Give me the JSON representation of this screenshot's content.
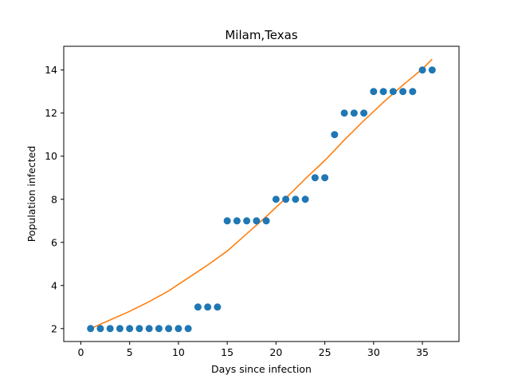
{
  "chart_data": {
    "type": "scatter",
    "title": "Milam,Texas",
    "xlabel": "Days since infection",
    "ylabel": "Population infected",
    "xlim": [
      -1.75,
      38.75
    ],
    "ylim": [
      1.4,
      15.1
    ],
    "xticks": [
      0,
      5,
      10,
      15,
      20,
      25,
      30,
      35
    ],
    "yticks": [
      2,
      4,
      6,
      8,
      10,
      12,
      14
    ],
    "grid": false,
    "series": [
      {
        "kind": "scatter",
        "color": "#1f77b4",
        "x": [
          1,
          2,
          3,
          4,
          5,
          6,
          7,
          8,
          9,
          10,
          11,
          12,
          13,
          14,
          15,
          16,
          17,
          18,
          19,
          20,
          21,
          22,
          23,
          24,
          25,
          26,
          27,
          28,
          29,
          30,
          31,
          32,
          33,
          34,
          35,
          36
        ],
        "y": [
          2,
          2,
          2,
          2,
          2,
          2,
          2,
          2,
          2,
          2,
          2,
          3,
          3,
          3,
          7,
          7,
          7,
          7,
          7,
          8,
          8,
          8,
          8,
          9,
          9,
          11,
          12,
          12,
          12,
          13,
          13,
          13,
          13,
          13,
          14,
          14
        ]
      },
      {
        "kind": "line",
        "color": "#ff7f0e",
        "x": [
          1,
          3,
          5,
          7,
          9,
          11,
          13,
          15,
          17,
          19,
          21,
          23,
          25,
          27,
          29,
          31,
          33,
          35,
          36
        ],
        "y": [
          2.0,
          2.4,
          2.8,
          3.25,
          3.75,
          4.35,
          4.95,
          5.6,
          6.4,
          7.2,
          8.05,
          8.95,
          9.8,
          10.75,
          11.65,
          12.5,
          13.3,
          14.05,
          14.5
        ]
      }
    ]
  }
}
